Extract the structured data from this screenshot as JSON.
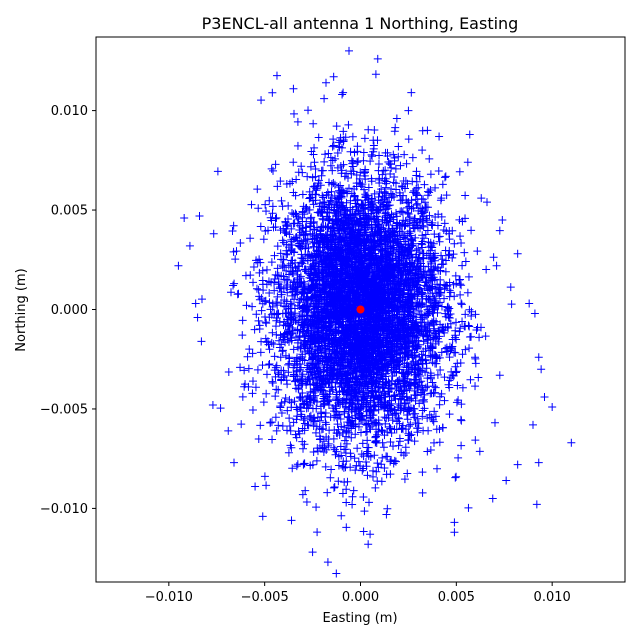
{
  "chart_data": {
    "type": "scatter",
    "title": "P3ENCL-all antenna 1 Northing, Easting",
    "xlabel": "Easting (m)",
    "ylabel": "Northing (m)",
    "xlim": [
      -0.0138,
      0.0138
    ],
    "ylim": [
      -0.0137,
      0.0137
    ],
    "xticks": [
      -0.01,
      -0.005,
      0.0,
      0.005,
      0.01
    ],
    "xtick_labels": [
      "−0.010",
      "−0.005",
      "0.000",
      "0.005",
      "0.010"
    ],
    "yticks": [
      -0.01,
      -0.005,
      0.0,
      0.005,
      0.01
    ],
    "ytick_labels": [
      "−0.010",
      "−0.005",
      "0.000",
      "0.005",
      "0.010"
    ],
    "grid": false,
    "colors": {
      "points": "#0000ff",
      "center": "#ff0000"
    },
    "series": [
      {
        "marker": "plus",
        "color": "#0000ff",
        "distribution": {
          "center": [
            0.0,
            0.0
          ],
          "std_easting": 0.0022,
          "std_northing": 0.0033,
          "count": 6000
        },
        "outliers": [
          {
            "x": -0.0037,
            "y": 0.0137
          },
          {
            "x": -0.0006,
            "y": 0.013
          },
          {
            "x": 0.0009,
            "y": 0.0126
          },
          {
            "x": -0.0046,
            "y": 0.0109
          },
          {
            "x": -0.0035,
            "y": 0.0111
          },
          {
            "x": -0.0019,
            "y": 0.0106
          },
          {
            "x": -0.0018,
            "y": 0.0114
          },
          {
            "x": -0.0014,
            "y": 0.0117
          },
          {
            "x": 0.0025,
            "y": 0.01
          },
          {
            "x": 0.0041,
            "y": 0.0087
          },
          {
            "x": 0.0057,
            "y": 0.0088
          },
          {
            "x": -0.0092,
            "y": 0.0046
          },
          {
            "x": -0.0095,
            "y": 0.0022
          },
          {
            "x": -0.0089,
            "y": 0.0032
          },
          {
            "x": -0.0084,
            "y": 0.0047
          },
          {
            "x": -0.0086,
            "y": 0.0003
          },
          {
            "x": -0.0085,
            "y": -0.0004
          },
          {
            "x": -0.0083,
            "y": -0.0016
          },
          {
            "x": -0.0077,
            "y": -0.0048
          },
          {
            "x": -0.0069,
            "y": -0.0061
          },
          {
            "x": -0.0066,
            "y": -0.0077
          },
          {
            "x": -0.0055,
            "y": -0.0089
          },
          {
            "x": -0.0051,
            "y": -0.0104
          },
          {
            "x": -0.0036,
            "y": -0.0106
          },
          {
            "x": -0.0025,
            "y": -0.0122
          },
          {
            "x": -0.0017,
            "y": -0.0127
          },
          {
            "x": 0.0004,
            "y": -0.0118
          },
          {
            "x": 0.0005,
            "y": -0.0113
          },
          {
            "x": 0.0049,
            "y": -0.0112
          },
          {
            "x": 0.0049,
            "y": -0.0107
          },
          {
            "x": 0.0069,
            "y": -0.0095
          },
          {
            "x": 0.0076,
            "y": -0.0086
          },
          {
            "x": 0.0082,
            "y": -0.0078
          },
          {
            "x": 0.0092,
            "y": -0.0098
          },
          {
            "x": 0.0093,
            "y": -0.0077
          },
          {
            "x": 0.009,
            "y": -0.0058
          },
          {
            "x": 0.011,
            "y": -0.0067
          },
          {
            "x": 0.01,
            "y": -0.0049
          },
          {
            "x": 0.0096,
            "y": -0.0044
          },
          {
            "x": 0.0093,
            "y": -0.0024
          },
          {
            "x": 0.0091,
            "y": -0.0002
          },
          {
            "x": 0.0088,
            "y": 0.0003
          },
          {
            "x": 0.0082,
            "y": 0.0028
          },
          {
            "x": 0.0074,
            "y": 0.0045
          },
          {
            "x": 0.0066,
            "y": 0.0054
          },
          {
            "x": 0.0071,
            "y": 0.0022
          },
          {
            "x": 0.0056,
            "y": 0.0074
          },
          {
            "x": 0.0063,
            "y": 0.0056
          }
        ]
      },
      {
        "marker": "circle",
        "color": "#ff0000",
        "points": [
          {
            "x": 0.0,
            "y": 0.0
          }
        ]
      }
    ]
  }
}
